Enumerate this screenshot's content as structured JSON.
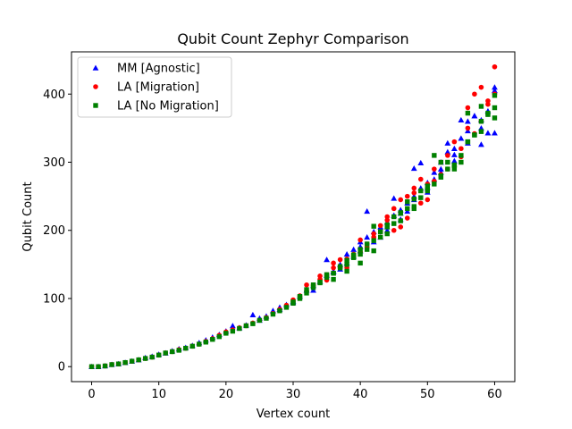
{
  "chart_data": {
    "type": "scatter",
    "title": "Qubit Count Zephyr Comparison",
    "xlabel": "Vertex count",
    "ylabel": "Qubit Count",
    "xlim": [
      -3,
      63
    ],
    "ylim": [
      -22,
      462
    ],
    "xticks": [
      0,
      10,
      20,
      30,
      40,
      50,
      60
    ],
    "yticks": [
      0,
      100,
      200,
      300,
      400
    ],
    "grid": false,
    "legend_position": "top-left",
    "series": [
      {
        "name": "MM [Agnostic]",
        "marker": "triangle",
        "color": "#0000ff",
        "x": [
          0,
          1,
          2,
          3,
          4,
          5,
          6,
          7,
          8,
          9,
          10,
          11,
          12,
          13,
          14,
          15,
          16,
          17,
          18,
          19,
          20,
          21,
          22,
          23,
          24,
          25,
          26,
          27,
          28,
          29,
          30,
          31,
          32,
          33,
          34,
          35,
          36,
          37,
          38,
          39,
          40,
          41,
          42,
          43,
          44,
          45,
          46,
          47,
          48,
          49,
          50,
          51,
          52,
          53,
          54,
          55,
          56,
          57,
          58,
          59,
          60,
          25,
          28,
          30,
          33,
          35,
          36,
          37,
          38,
          39,
          40,
          41,
          42,
          43,
          44,
          45,
          46,
          47,
          48,
          49,
          50,
          51,
          52,
          53,
          54,
          55,
          56,
          57,
          58,
          59,
          60,
          40,
          44,
          46,
          48,
          50,
          52,
          54,
          56,
          58,
          60
        ],
        "y": [
          0,
          0,
          1,
          3,
          4,
          6,
          8,
          10,
          13,
          15,
          18,
          20,
          23,
          26,
          28,
          31,
          35,
          39,
          43,
          47,
          52,
          60,
          57,
          61,
          76,
          71,
          74,
          82,
          87,
          91,
          96,
          103,
          112,
          119,
          125,
          157,
          139,
          143,
          152,
          162,
          170,
          228,
          183,
          190,
          200,
          247,
          216,
          228,
          291,
          299,
          256,
          275,
          290,
          328,
          311,
          362,
          346,
          368,
          326,
          343,
          343,
          68,
          84,
          94,
          112,
          134,
          140,
          150,
          165,
          172,
          183,
          190,
          198,
          205,
          212,
          222,
          230,
          240,
          250,
          262,
          270,
          285,
          300,
          315,
          320,
          335,
          360,
          368,
          362,
          375,
          405,
          176,
          205,
          225,
          245,
          263,
          285,
          302,
          328,
          350,
          410
        ]
      },
      {
        "name": "LA [Migration]",
        "marker": "circle",
        "color": "#ff0000",
        "x": [
          0,
          1,
          2,
          3,
          4,
          5,
          6,
          7,
          8,
          9,
          10,
          11,
          12,
          13,
          14,
          15,
          16,
          17,
          18,
          19,
          20,
          21,
          22,
          23,
          24,
          25,
          26,
          27,
          28,
          29,
          30,
          31,
          32,
          33,
          34,
          35,
          36,
          37,
          38,
          39,
          40,
          41,
          42,
          43,
          44,
          45,
          46,
          47,
          48,
          49,
          50,
          51,
          52,
          53,
          54,
          55,
          56,
          57,
          58,
          59,
          60,
          30,
          32,
          34,
          36,
          38,
          40,
          42,
          44,
          46,
          48,
          50,
          52,
          54,
          56,
          58,
          60,
          35,
          37,
          39,
          41,
          43,
          45,
          47,
          49,
          51,
          53,
          55,
          57,
          59
        ],
        "y": [
          0,
          0,
          1,
          3,
          4,
          6,
          8,
          10,
          12,
          14,
          17,
          20,
          22,
          25,
          27,
          30,
          33,
          37,
          41,
          46,
          51,
          54,
          57,
          60,
          64,
          68,
          72,
          78,
          84,
          90,
          96,
          104,
          111,
          120,
          128,
          135,
          145,
          157,
          145,
          165,
          186,
          175,
          190,
          207,
          215,
          232,
          205,
          250,
          255,
          275,
          245,
          290,
          300,
          310,
          330,
          320,
          380,
          400,
          410,
          385,
          440,
          98,
          120,
          133,
          152,
          158,
          168,
          195,
          220,
          245,
          262,
          268,
          282,
          294,
          350,
          360,
          400,
          127,
          146,
          162,
          180,
          198,
          200,
          218,
          240,
          272,
          290,
          308,
          342,
          390
        ]
      },
      {
        "name": "LA [No Migration]",
        "marker": "square",
        "color": "#008000",
        "x": [
          0,
          1,
          2,
          3,
          4,
          5,
          6,
          7,
          8,
          9,
          10,
          11,
          12,
          13,
          14,
          15,
          16,
          17,
          18,
          19,
          20,
          21,
          22,
          23,
          24,
          25,
          26,
          27,
          28,
          29,
          30,
          31,
          32,
          33,
          34,
          35,
          36,
          37,
          38,
          39,
          40,
          41,
          42,
          43,
          44,
          45,
          46,
          47,
          48,
          49,
          50,
          51,
          52,
          53,
          54,
          55,
          56,
          57,
          58,
          59,
          60,
          30,
          32,
          34,
          36,
          38,
          40,
          42,
          44,
          46,
          48,
          50,
          52,
          54,
          56,
          58,
          60,
          31,
          33,
          35,
          37,
          39,
          41,
          43,
          45,
          47,
          49,
          51,
          53,
          55,
          57,
          59,
          36,
          38,
          40,
          42,
          44,
          46,
          48,
          50,
          52,
          54,
          56,
          58,
          60
        ],
        "y": [
          0,
          0,
          1,
          3,
          4,
          6,
          8,
          10,
          12,
          14,
          17,
          20,
          22,
          24,
          27,
          30,
          33,
          36,
          40,
          44,
          49,
          52,
          56,
          60,
          63,
          68,
          71,
          77,
          82,
          87,
          93,
          100,
          108,
          116,
          124,
          131,
          137,
          145,
          156,
          164,
          172,
          180,
          206,
          198,
          208,
          220,
          226,
          242,
          246,
          258,
          260,
          310,
          300,
          300,
          295,
          300,
          330,
          340,
          360,
          372,
          380,
          95,
          113,
          123,
          137,
          150,
          165,
          185,
          205,
          225,
          232,
          265,
          280,
          290,
          330,
          345,
          365,
          103,
          120,
          135,
          147,
          160,
          172,
          190,
          210,
          232,
          248,
          268,
          290,
          310,
          340,
          370,
          128,
          140,
          152,
          170,
          195,
          214,
          235,
          258,
          278,
          296,
          372,
          382,
          398
        ]
      }
    ]
  }
}
